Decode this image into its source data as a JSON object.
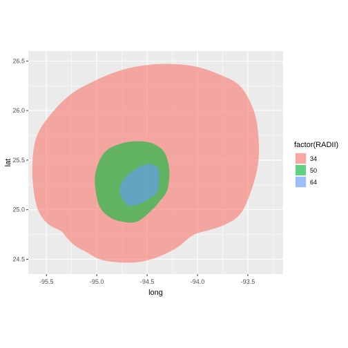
{
  "chart_data": {
    "type": "area",
    "xlabel": "long",
    "ylabel": "lat",
    "xlim": [
      -95.68,
      -93.15
    ],
    "ylim": [
      24.35,
      26.6
    ],
    "x_ticks": [
      -95.5,
      -95.25,
      -95.0,
      -94.75,
      -94.5,
      -94.25,
      -94.0,
      -93.75,
      -93.5,
      -93.25
    ],
    "x_tick_labels": [
      "-95.5",
      "",
      "-95.0",
      "",
      "-94.5",
      "",
      "-94.0",
      "",
      "-93.5",
      ""
    ],
    "y_ticks": [
      24.5,
      24.75,
      25.0,
      25.25,
      25.5,
      25.75,
      26.0,
      26.25,
      26.5
    ],
    "y_tick_labels": [
      "24.5",
      "",
      "25.0",
      "",
      "25.5",
      "",
      "26.0",
      "",
      "26.5"
    ],
    "grid": true,
    "legend_title": "factor(RADII)",
    "legend_position": "right",
    "series": [
      {
        "name": "34",
        "color": "#F8766D",
        "opacity": 0.6,
        "x": [
          -94.25,
          -94.0,
          -93.75,
          -93.58,
          -93.46,
          -93.4,
          -93.4,
          -93.5,
          -93.6,
          -93.75,
          -93.9,
          -94.05,
          -94.2,
          -94.4,
          -94.6,
          -94.8,
          -94.97,
          -95.1,
          -95.22,
          -95.3,
          -95.35,
          -95.5,
          -95.6,
          -95.64,
          -95.6,
          -95.45,
          -95.25,
          -95.0,
          -94.75,
          -94.5,
          -94.25
        ],
        "y": [
          26.47,
          26.44,
          26.35,
          26.25,
          26.05,
          25.8,
          25.45,
          25.1,
          24.93,
          24.84,
          24.79,
          24.74,
          24.62,
          24.52,
          24.47,
          24.47,
          24.5,
          24.57,
          24.64,
          24.72,
          24.78,
          24.87,
          25.05,
          25.4,
          25.73,
          25.97,
          26.17,
          26.31,
          26.41,
          26.46,
          26.47
        ]
      },
      {
        "name": "50",
        "color": "#00BA38",
        "opacity": 0.6,
        "x": [
          -94.6,
          -94.45,
          -94.33,
          -94.28,
          -94.3,
          -94.38,
          -94.46,
          -94.6,
          -94.75,
          -94.88,
          -94.98,
          -95.02,
          -94.98,
          -94.9,
          -94.75,
          -94.6
        ],
        "y": [
          25.69,
          25.67,
          25.58,
          25.4,
          25.2,
          25.08,
          24.99,
          24.88,
          24.88,
          24.93,
          25.05,
          25.3,
          25.48,
          25.6,
          25.67,
          25.69
        ]
      },
      {
        "name": "64",
        "color": "#619CFF",
        "opacity": 0.6,
        "x": [
          -94.5,
          -94.4,
          -94.38,
          -94.4,
          -94.48,
          -94.6,
          -94.7,
          -94.77,
          -94.75,
          -94.7,
          -94.6,
          -94.5
        ],
        "y": [
          25.46,
          25.43,
          25.32,
          25.18,
          25.11,
          25.05,
          25.05,
          25.17,
          25.28,
          25.34,
          25.42,
          25.46
        ]
      }
    ]
  }
}
